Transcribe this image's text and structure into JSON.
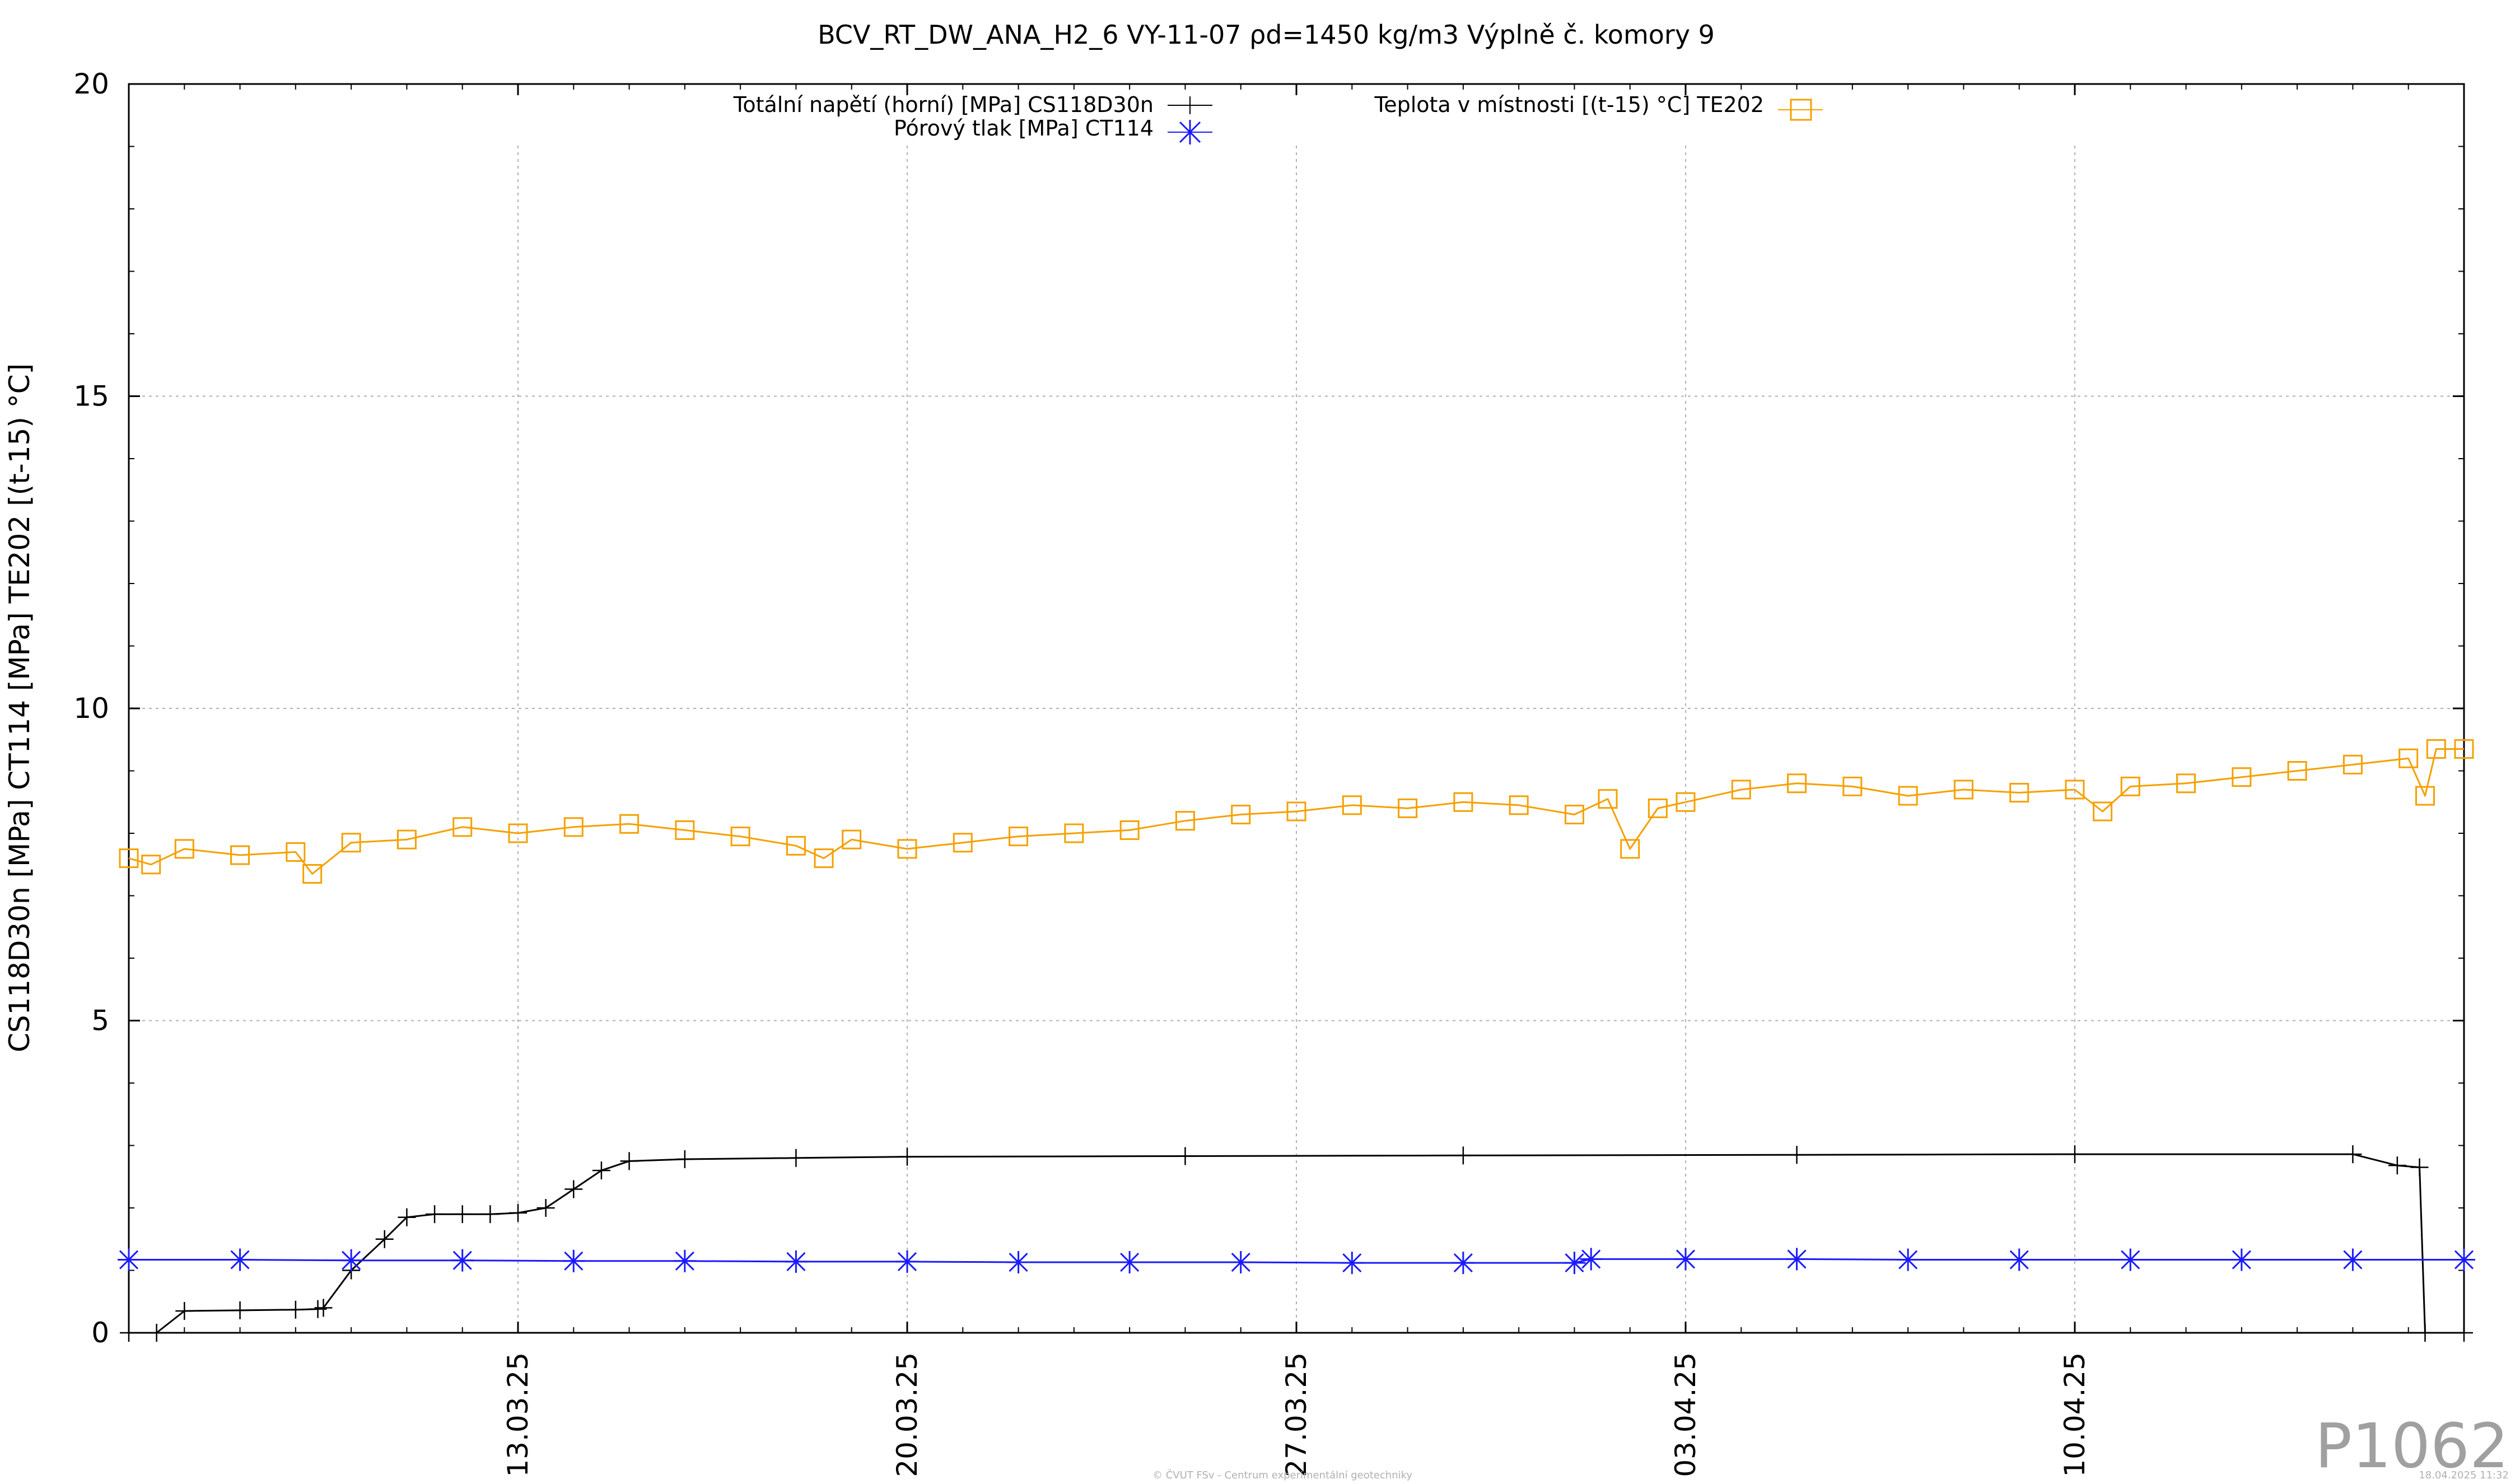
{
  "chart_data": {
    "type": "line",
    "title": "BCV_RT_DW_ANA_H2_6 VY-11-07 ρd=1450 kg/m3 Výplně č. komory 9",
    "ylabel": "CS118D30n [MPa] CT114 [MPa] TE202 [(t-15) °C]",
    "xlabel": "",
    "ylim": [
      0,
      20
    ],
    "yticks": [
      0,
      5,
      10,
      15,
      20
    ],
    "ytick_labels": [
      "0",
      "5",
      "10",
      "15",
      "20"
    ],
    "xlim": [
      "2025-03-06",
      "2025-04-17"
    ],
    "xticks": [
      "2025-03-13",
      "2025-03-20",
      "2025-03-27",
      "2025-04-03",
      "2025-04-10"
    ],
    "xtick_labels": [
      "13.03.25",
      "20.03.25",
      "27.03.25",
      "03.04.25",
      "10.04.25"
    ],
    "grid": true,
    "legend_placement": "top",
    "colors": {
      "CS118D30n": "#000000",
      "CT114": "#1a1aff",
      "TE202": "#f5a000",
      "grid": "#b0b0b0",
      "watermark": "#a0a0a0"
    },
    "series": [
      {
        "name": "Totální napětí (horní) [MPa] CS118D30n",
        "marker": "plus",
        "x": [
          "2025-03-06",
          "2025-03-06.5",
          "2025-03-07",
          "2025-03-08",
          "2025-03-09",
          "2025-03-09.4",
          "2025-03-09.5",
          "2025-03-10",
          "2025-03-10.6",
          "2025-03-11",
          "2025-03-11.5",
          "2025-03-12",
          "2025-03-12.5",
          "2025-03-13",
          "2025-03-13.5",
          "2025-03-14",
          "2025-03-14.5",
          "2025-03-15",
          "2025-03-16",
          "2025-03-18",
          "2025-03-20",
          "2025-03-25",
          "2025-03-30",
          "2025-04-05",
          "2025-04-10",
          "2025-04-15",
          "2025-04-15.8",
          "2025-04-16.2",
          "2025-04-16.3",
          "2025-04-17"
        ],
        "y": [
          0.0,
          0.0,
          0.35,
          0.36,
          0.37,
          0.38,
          0.4,
          1.0,
          1.5,
          1.85,
          1.9,
          1.9,
          1.9,
          1.92,
          2.0,
          2.3,
          2.6,
          2.75,
          2.78,
          2.8,
          2.82,
          2.83,
          2.84,
          2.85,
          2.86,
          2.86,
          2.68,
          2.65,
          0.0,
          0.0
        ],
        "values": [
          0.0,
          0.0,
          0.35,
          0.36,
          0.37,
          0.38,
          0.4,
          1.0,
          1.5,
          1.85,
          1.9,
          1.9,
          1.9,
          1.92,
          2.0,
          2.3,
          2.6,
          2.75,
          2.78,
          2.8,
          2.82,
          2.83,
          2.84,
          2.85,
          2.86,
          2.86,
          2.68,
          2.65,
          0.0,
          0.0
        ]
      },
      {
        "name": "Pórový tlak [MPa] CT114",
        "marker": "star",
        "x": [
          "2025-03-06",
          "2025-03-08",
          "2025-03-10",
          "2025-03-12",
          "2025-03-14",
          "2025-03-16",
          "2025-03-18",
          "2025-03-20",
          "2025-03-22",
          "2025-03-24",
          "2025-03-26",
          "2025-03-28",
          "2025-03-30",
          "2025-04-01",
          "2025-04-01.3",
          "2025-04-03",
          "2025-04-05",
          "2025-04-07",
          "2025-04-09",
          "2025-04-11",
          "2025-04-13",
          "2025-04-15",
          "2025-04-17"
        ],
        "y": [
          1.17,
          1.17,
          1.16,
          1.16,
          1.15,
          1.15,
          1.14,
          1.14,
          1.13,
          1.13,
          1.13,
          1.12,
          1.12,
          1.12,
          1.18,
          1.18,
          1.18,
          1.17,
          1.17,
          1.17,
          1.17,
          1.17,
          1.17
        ],
        "values": [
          1.17,
          1.17,
          1.16,
          1.16,
          1.15,
          1.15,
          1.14,
          1.14,
          1.13,
          1.13,
          1.13,
          1.12,
          1.12,
          1.12,
          1.18,
          1.18,
          1.18,
          1.17,
          1.17,
          1.17,
          1.17,
          1.17,
          1.17
        ]
      },
      {
        "name": "Teplota v místnosti [(t-15) °C] TE202",
        "marker": "square",
        "x": [
          "2025-03-06",
          "2025-03-06.4",
          "2025-03-07",
          "2025-03-08",
          "2025-03-09",
          "2025-03-09.3",
          "2025-03-10",
          "2025-03-11",
          "2025-03-12",
          "2025-03-13",
          "2025-03-14",
          "2025-03-15",
          "2025-03-16",
          "2025-03-17",
          "2025-03-18",
          "2025-03-18.5",
          "2025-03-19",
          "2025-03-20",
          "2025-03-21",
          "2025-03-22",
          "2025-03-23",
          "2025-03-24",
          "2025-03-25",
          "2025-03-26",
          "2025-03-27",
          "2025-03-28",
          "2025-03-29",
          "2025-03-30",
          "2025-03-31",
          "2025-04-01",
          "2025-04-01.6",
          "2025-04-02",
          "2025-04-02.5",
          "2025-04-03",
          "2025-04-04",
          "2025-04-05",
          "2025-04-06",
          "2025-04-07",
          "2025-04-08",
          "2025-04-09",
          "2025-04-10",
          "2025-04-10.5",
          "2025-04-11",
          "2025-04-12",
          "2025-04-13",
          "2025-04-14",
          "2025-04-15",
          "2025-04-16",
          "2025-04-16.3",
          "2025-04-16.5",
          "2025-04-17"
        ],
        "y": [
          7.6,
          7.5,
          7.75,
          7.65,
          7.7,
          7.35,
          7.85,
          7.9,
          8.1,
          8.0,
          8.1,
          8.15,
          8.05,
          7.95,
          7.8,
          7.6,
          7.9,
          7.75,
          7.85,
          7.95,
          8.0,
          8.05,
          8.2,
          8.3,
          8.35,
          8.45,
          8.4,
          8.5,
          8.45,
          8.3,
          8.55,
          7.75,
          8.4,
          8.5,
          8.7,
          8.8,
          8.75,
          8.6,
          8.7,
          8.65,
          8.7,
          8.35,
          8.75,
          8.8,
          8.9,
          9.0,
          9.1,
          9.2,
          8.6,
          9.35,
          9.35
        ],
        "values": [
          7.6,
          7.5,
          7.75,
          7.65,
          7.7,
          7.35,
          7.85,
          7.9,
          8.1,
          8.0,
          8.1,
          8.15,
          8.05,
          7.95,
          7.8,
          7.6,
          7.9,
          7.75,
          7.85,
          7.95,
          8.0,
          8.05,
          8.2,
          8.3,
          8.35,
          8.45,
          8.4,
          8.5,
          8.45,
          8.3,
          8.55,
          7.75,
          8.4,
          8.5,
          8.7,
          8.8,
          8.75,
          8.6,
          8.7,
          8.65,
          8.7,
          8.35,
          8.75,
          8.8,
          8.9,
          9.0,
          9.1,
          9.2,
          8.6,
          9.35,
          9.35
        ]
      }
    ],
    "watermark": "P1062",
    "footer_left": "© ČVUT FSv - Centrum experimentální geotechniky",
    "footer_right": "18.04.2025 11:32"
  }
}
